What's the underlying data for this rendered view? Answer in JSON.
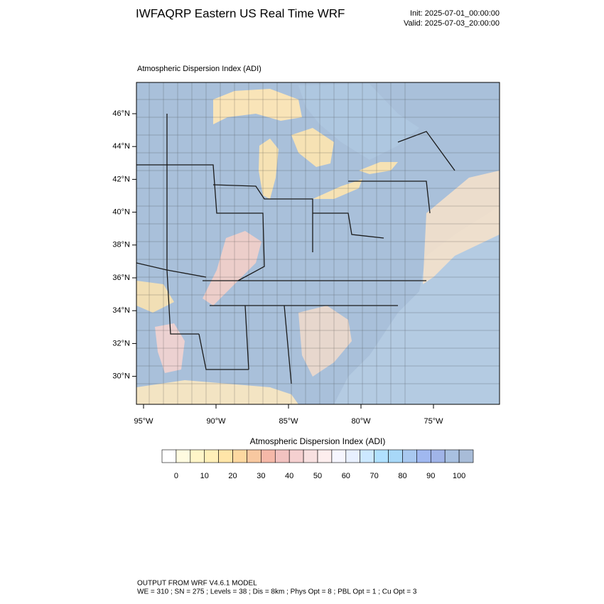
{
  "header": {
    "title": "IWFAQRP Eastern US Real Time WRF",
    "init": "Init: 2025-07-01_00:00:00",
    "valid": "Valid: 2025-07-03_20:00:00"
  },
  "map": {
    "subtitle": "Atmospheric Dispersion Index   (ADI)",
    "lat_labels": [
      "46°N",
      "44°N",
      "42°N",
      "40°N",
      "38°N",
      "36°N",
      "34°N",
      "32°N",
      "30°N"
    ],
    "lon_labels": [
      "95°W",
      "90°W",
      "85°W",
      "80°W",
      "75°W"
    ]
  },
  "colorbar": {
    "title": "Atmospheric Dispersion Index  (ADI)",
    "ticks": [
      0,
      10,
      20,
      30,
      40,
      50,
      60,
      70,
      80,
      90,
      100
    ]
  },
  "footer": {
    "line1": "OUTPUT FROM WRF V4.6.1 MODEL",
    "line2": "WE = 310 ; SN = 275 ; Levels = 38 ; Dis = 8km ; Phys Opt = 8 ; PBL Opt = 1 ; Cu Opt = 3"
  }
}
